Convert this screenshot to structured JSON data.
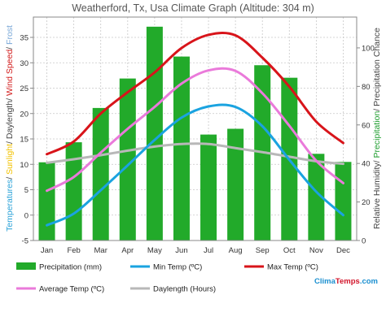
{
  "chart_data": {
    "type": "bar+line",
    "title": "Weatherford, Tx, Usa Climate Graph (Altitude: 304 m)",
    "categories": [
      "Jan",
      "Feb",
      "Mar",
      "Apr",
      "May",
      "Jun",
      "Jul",
      "Aug",
      "Sep",
      "Oct",
      "Nov",
      "Dec"
    ],
    "left_axis": {
      "ylim": [
        -5,
        39
      ],
      "ticks": [
        -5,
        0,
        5,
        10,
        15,
        20,
        25,
        30,
        35
      ],
      "label_parts": [
        {
          "text": "Temperatures",
          "color": "#2aa2d8"
        },
        {
          "text": "/ ",
          "color": "#444444"
        },
        {
          "text": "Sunlight",
          "color": "#f2c200"
        },
        {
          "text": "/ Daylength/ ",
          "color": "#444444"
        },
        {
          "text": "Wind Speed",
          "color": "#d21a1a"
        },
        {
          "text": "/ ",
          "color": "#444444"
        },
        {
          "text": "Frost",
          "color": "#7aa8d8"
        }
      ]
    },
    "right_axis": {
      "ylim": [
        0,
        116
      ],
      "ticks": [
        0,
        20,
        40,
        60,
        80,
        100
      ],
      "label_parts": [
        {
          "text": "Relative Humidity/ ",
          "color": "#444444"
        },
        {
          "text": "Precipitation",
          "color": "#1c9c2c"
        },
        {
          "text": "/ Precipitation Chance",
          "color": "#444444"
        }
      ]
    },
    "series": [
      {
        "name": "Precipitation (mm)",
        "type": "bar",
        "axis": "right",
        "color": "#22aa2a",
        "values": [
          40.6,
          51.0,
          68.8,
          84.1,
          111.0,
          95.5,
          55.0,
          58.0,
          91.0,
          84.5,
          45.0,
          40.8
        ]
      },
      {
        "name": "Min Temp (ºC)",
        "type": "line",
        "axis": "left",
        "color": "#1aa3e0",
        "values": [
          -2.0,
          0.3,
          4.9,
          9.8,
          14.8,
          19.2,
          21.4,
          21.3,
          17.5,
          10.9,
          4.6,
          0.0
        ]
      },
      {
        "name": "Max Temp (ºC)",
        "type": "line",
        "axis": "left",
        "color": "#d8141a",
        "values": [
          12.0,
          14.5,
          20.0,
          24.2,
          28.1,
          32.9,
          35.5,
          35.4,
          31.0,
          25.3,
          18.4,
          14.2
        ]
      },
      {
        "name": "Average Temp (ºC)",
        "type": "line",
        "axis": "left",
        "color": "#ea7ada",
        "values": [
          4.8,
          7.5,
          12.3,
          17.0,
          21.3,
          25.9,
          28.5,
          28.4,
          24.0,
          17.6,
          10.7,
          6.3
        ]
      },
      {
        "name": "Daylength (Hours)",
        "type": "line",
        "axis": "left",
        "color": "#b8b8b8",
        "values": [
          10.3,
          11.0,
          11.8,
          12.7,
          13.5,
          14.0,
          14.0,
          13.2,
          12.4,
          11.5,
          10.6,
          10.1
        ]
      }
    ],
    "grid": true,
    "legend_position": "bottom"
  },
  "brand": {
    "clima": "Clima",
    "temps": "Temps",
    "suffix": ".com"
  }
}
